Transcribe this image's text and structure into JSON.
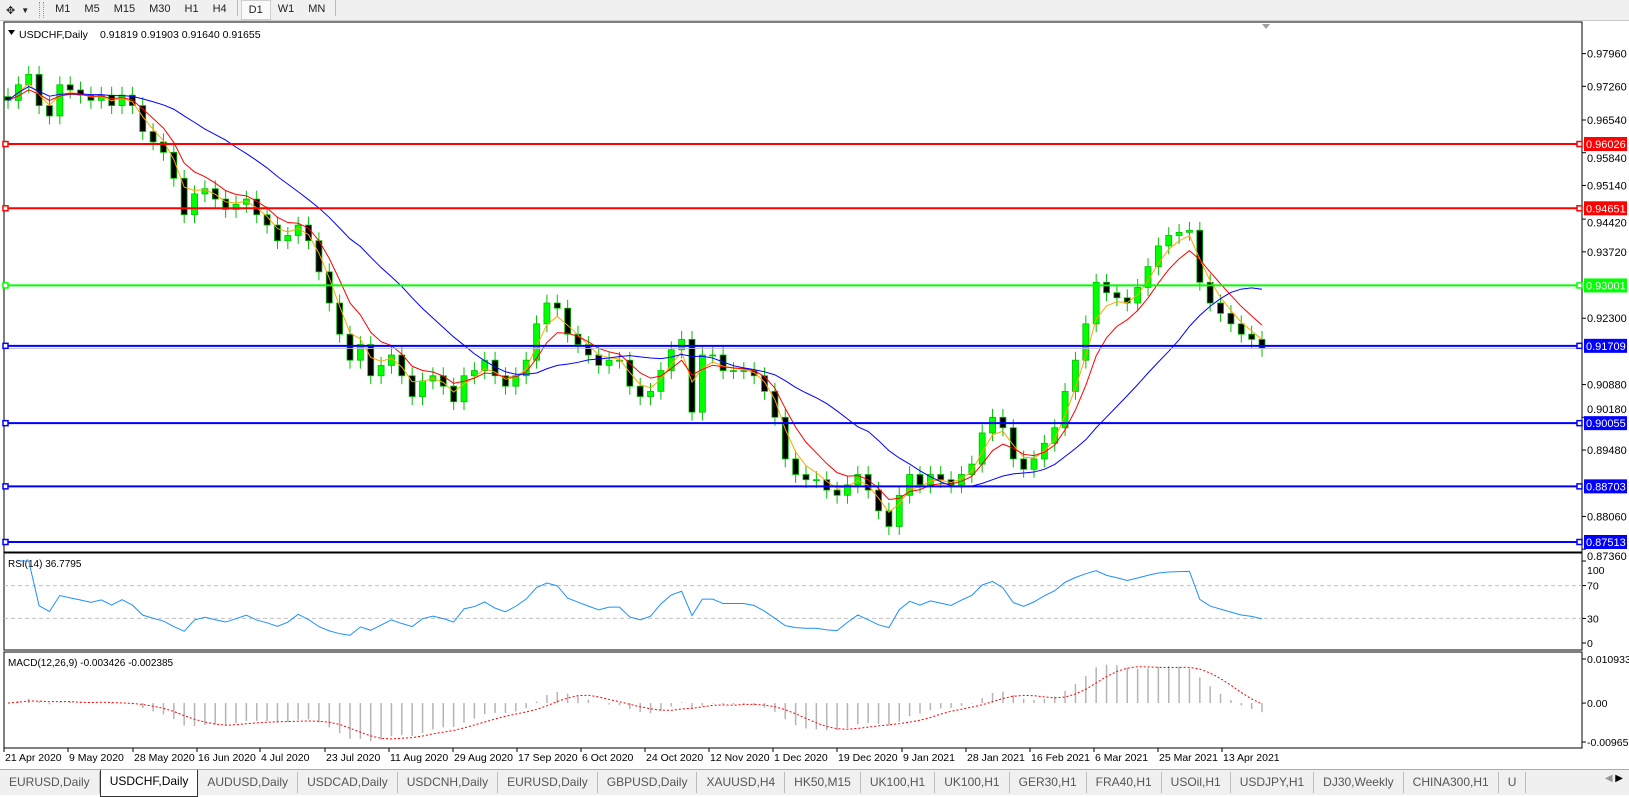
{
  "toolbar": {
    "draw_tool_icon": "crosshair-line-tool-icon",
    "timeframes": [
      "M1",
      "M5",
      "M15",
      "M30",
      "H1",
      "H4",
      "D1",
      "W1",
      "MN"
    ],
    "active_timeframe": "D1"
  },
  "chart": {
    "symbol_label": "USDCHF,Daily",
    "ohlc_label": "0.91819 0.91903 0.91640 0.91655",
    "rsi_label": "RSI(14) 36.7795",
    "macd_label": "MACD(12,26,9) -0.003426 -0.002385"
  },
  "chart_data": {
    "type": "candlestick",
    "symbol": "USDCHF",
    "timeframe": "Daily",
    "last_close": 0.91655,
    "price_ticks": [
      "0.97960",
      "0.97260",
      "0.96540",
      "0.95840",
      "0.95140",
      "0.94420",
      "0.93720",
      "0.92300",
      "0.90880",
      "0.90180",
      "0.89480",
      "0.88060",
      "0.87360"
    ],
    "ylim": [
      0.8736,
      0.9826
    ],
    "date_ticks": [
      "21 Apr 2020",
      "9 May 2020",
      "28 May 2020",
      "16 Jun 2020",
      "4 Jul 2020",
      "23 Jul 2020",
      "11 Aug 2020",
      "29 Aug 2020",
      "17 Sep 2020",
      "6 Oct 2020",
      "24 Oct 2020",
      "12 Nov 2020",
      "1 Dec 2020",
      "19 Dec 2020",
      "9 Jan 2021",
      "28 Jan 2021",
      "16 Feb 2021",
      "6 Mar 2021",
      "25 Mar 2021",
      "13 Apr 2021"
    ],
    "closes": [
      0.9696,
      0.97293,
      0.97515,
      0.96848,
      0.96626,
      0.97293,
      0.97182,
      0.97071,
      0.9696,
      0.97071,
      0.96848,
      0.97071,
      0.96848,
      0.96293,
      0.9607,
      0.95848,
      0.95292,
      0.94514,
      0.94959,
      0.9507,
      0.94848,
      0.94626,
      0.94737,
      0.94848,
      0.94514,
      0.94292,
      0.93959,
      0.9407,
      0.94292,
      0.93959,
      0.93292,
      0.92625,
      0.91958,
      0.91402,
      0.91736,
      0.91069,
      0.91291,
      0.91513,
      0.91069,
      0.90624,
      0.90958,
      0.91069,
      0.90846,
      0.90513,
      0.91069,
      0.9118,
      0.91402,
      0.91069,
      0.90846,
      0.91069,
      0.91402,
      0.9218,
      0.92625,
      0.92514,
      0.91958,
      0.91736,
      0.91513,
      0.91291,
      0.91402,
      0.91402,
      0.90846,
      0.90624,
      0.90735,
      0.9118,
      0.91624,
      0.91847,
      0.9029,
      0.91513,
      0.91513,
      0.9118,
      0.9118,
      0.9118,
      0.91069,
      0.90735,
      0.9018,
      0.8929,
      0.88957,
      0.88846,
      0.88846,
      0.88624,
      0.88512,
      0.88735,
      0.88957,
      0.88624,
      0.88179,
      0.87845,
      0.88512,
      0.88957,
      0.88735,
      0.88957,
      0.88846,
      0.88735,
      0.88957,
      0.89179,
      0.89846,
      0.9018,
      0.89957,
      0.8929,
      0.89068,
      0.8929,
      0.89624,
      0.89957,
      0.90735,
      0.91402,
      0.9218,
      0.93069,
      0.92847,
      0.92736,
      0.92625,
      0.92958,
      0.93403,
      0.93847,
      0.9407,
      0.94137,
      0.94181,
      0.93069,
      0.92625,
      0.92403,
      0.9218,
      0.91958,
      0.91847,
      0.91655
    ],
    "horizontal_levels": [
      {
        "price": 0.96026,
        "label": "0.96026",
        "color": "#ff0000"
      },
      {
        "price": 0.94651,
        "label": "0.94651",
        "color": "#ff0000"
      },
      {
        "price": 0.93001,
        "label": "0.93001",
        "color": "#00ff00"
      },
      {
        "price": 0.91709,
        "label": "0.91709",
        "color": "#0000ff"
      },
      {
        "price": 0.90055,
        "label": "0.90055",
        "color": "#0000ff"
      },
      {
        "price": 0.88703,
        "label": "0.88703",
        "color": "#0000ff"
      },
      {
        "price": 0.87513,
        "label": "0.87513",
        "color": "#0000ff"
      }
    ],
    "moving_averages": [
      {
        "color": "#ffa500"
      },
      {
        "color": "#ff0000"
      },
      {
        "color": "#0000ff"
      }
    ],
    "rsi": {
      "ticks": [
        "100",
        "70",
        "30",
        "0"
      ],
      "levels": [
        70,
        30
      ],
      "ylim": [
        0,
        100
      ],
      "color": "#1e90ff",
      "last": 36.7795
    },
    "macd": {
      "ticks": [
        "0.010933",
        "0.00",
        "-0.009653"
      ],
      "ylim": [
        -0.009653,
        0.010933
      ],
      "main": -0.003426,
      "signal": -0.002385,
      "hist_color": "#b4b4b4",
      "signal_color": "#ff0000"
    },
    "candle_colors": {
      "up": "#00ff00",
      "down": "#000000",
      "wick": "#00c000"
    }
  },
  "tabs": [
    "EURUSD,Daily",
    "USDCHF,Daily",
    "AUDUSD,Daily",
    "USDCAD,Daily",
    "USDCNH,Daily",
    "EURUSD,Daily",
    "GBPUSD,Daily",
    "XAUUSD,H4",
    "HK50,M15",
    "UK100,H1",
    "UK100,H1",
    "GER30,H1",
    "FRA40,H1",
    "USOil,H1",
    "USDJPY,H1",
    "DJ30,Weekly",
    "CHINA300,H1",
    "U"
  ],
  "active_tab": "USDCHF,Daily"
}
